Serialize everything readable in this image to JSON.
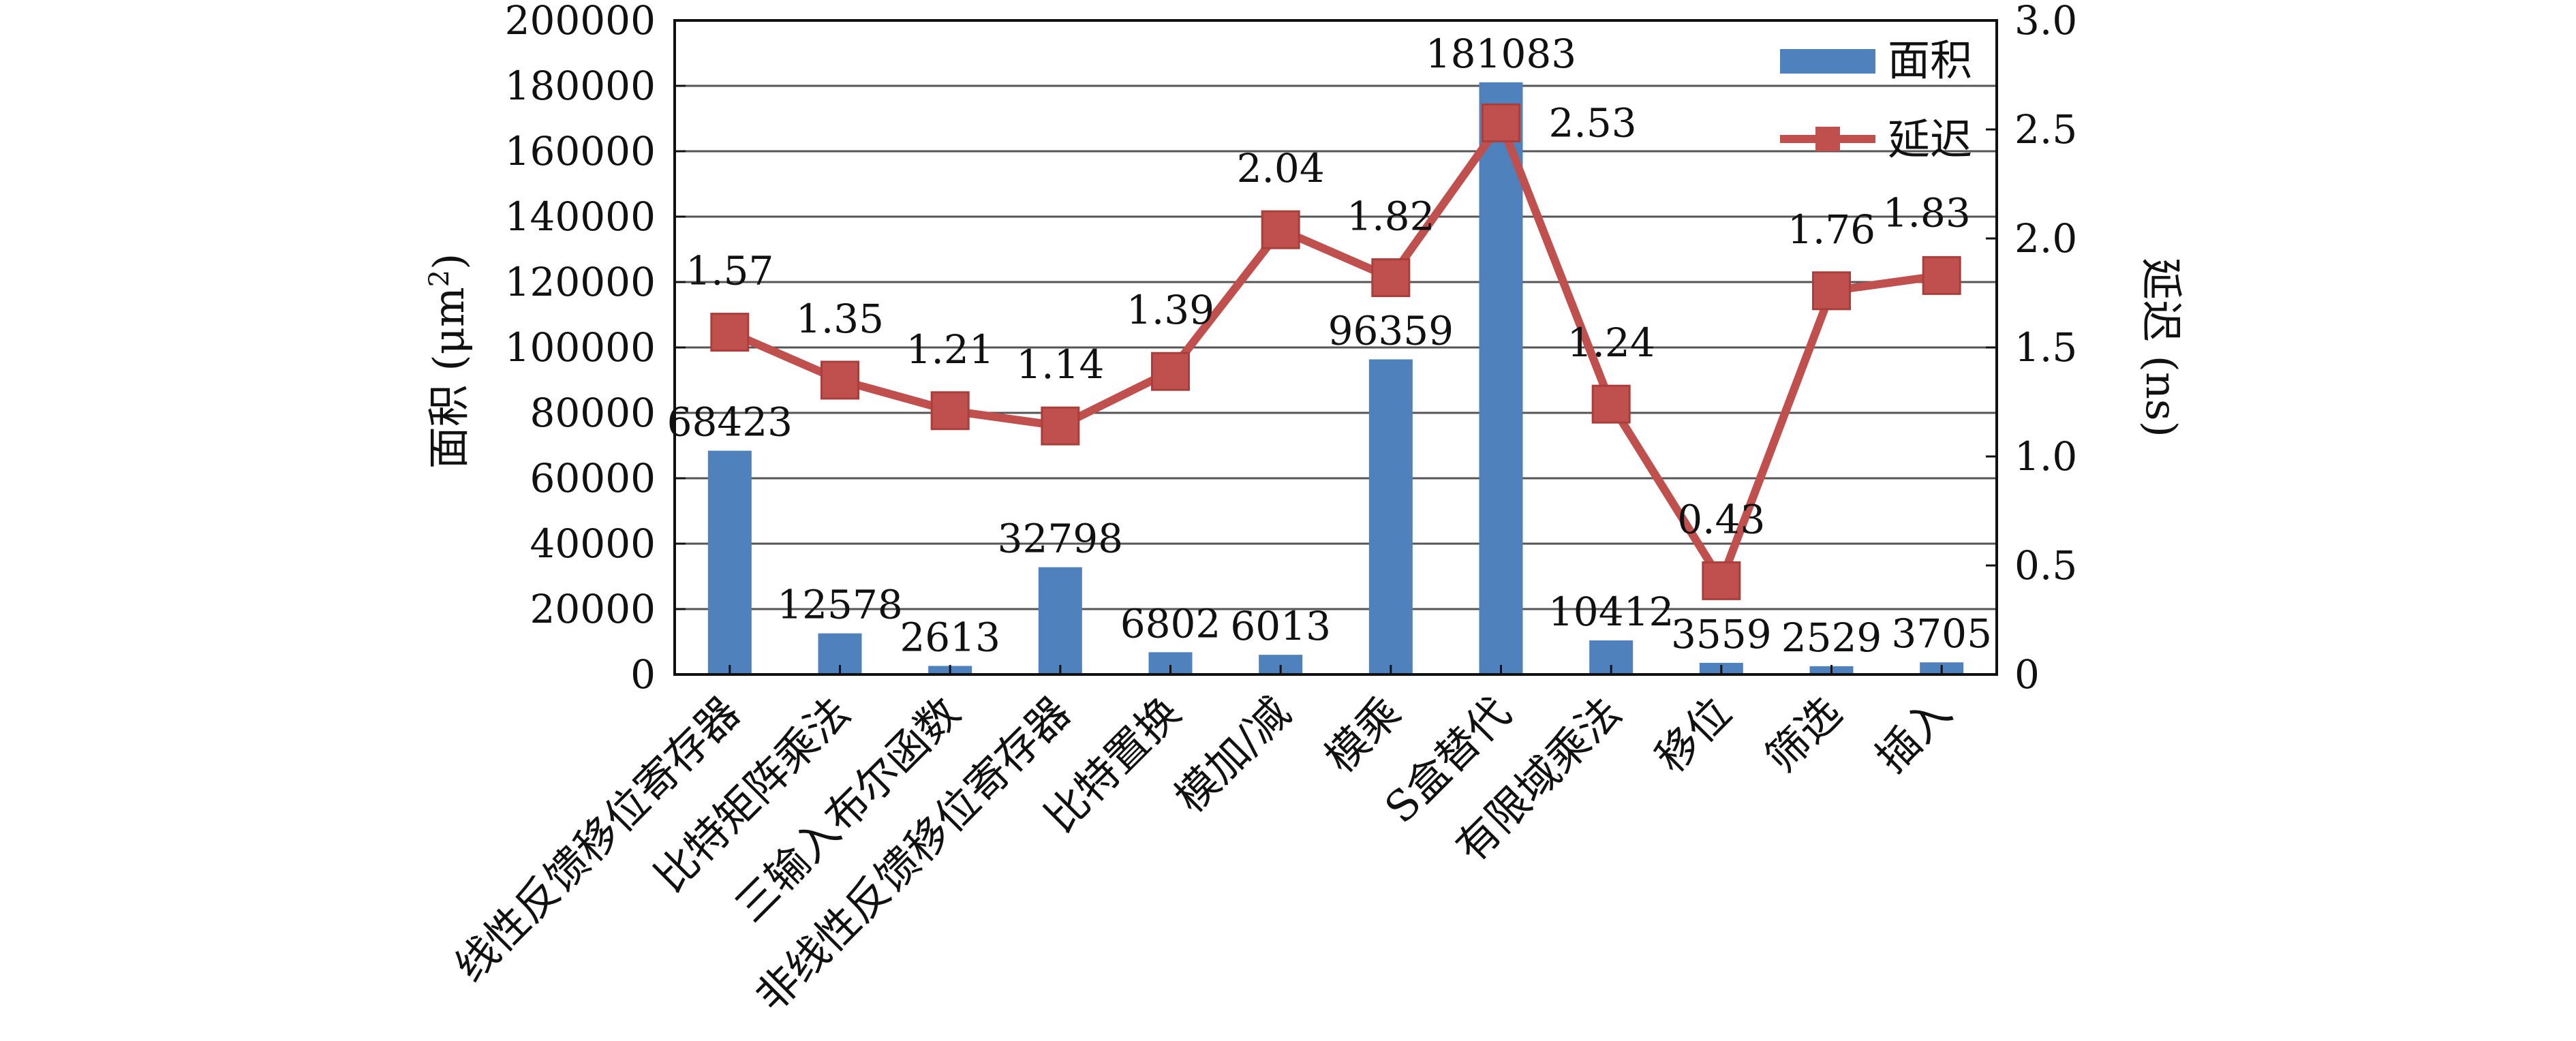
{
  "chart_data": {
    "type": "bar",
    "title": "",
    "categories": [
      "线性反馈移位寄存器",
      "比特矩阵乘法",
      "三输入布尔函数",
      "非线性反馈移位寄存器",
      "比特置换",
      "模加/减",
      "模乘",
      "S盒替代",
      "有限域乘法",
      "移位",
      "筛选",
      "插入"
    ],
    "series": [
      {
        "name": "面积",
        "type": "bar",
        "axis": "left",
        "color": "#4f81bd",
        "values": [
          68423,
          12578,
          2613,
          32798,
          6802,
          6013,
          96359,
          181083,
          10412,
          3559,
          2529,
          3705
        ],
        "labels": [
          "68423",
          "12578",
          "2613",
          "32798",
          "6802",
          "6013",
          "96359",
          "181083",
          "10412",
          "3559",
          "2529",
          "3705"
        ]
      },
      {
        "name": "延迟",
        "type": "line",
        "axis": "right",
        "color": "#c0504d",
        "marker": "square",
        "values": [
          1.57,
          1.35,
          1.21,
          1.14,
          1.39,
          2.04,
          1.82,
          2.53,
          1.24,
          0.43,
          1.76,
          1.83
        ],
        "labels": [
          "1.57",
          "1.35",
          "1.21",
          "1.14",
          "1.39",
          "2.04",
          "1.82",
          "2.53",
          "1.24",
          "0.43",
          "1.76",
          "1.83"
        ]
      }
    ],
    "y_left": {
      "label_main": "面积 (μm",
      "label_sup": "2",
      "label_close": ")",
      "range": [
        0,
        200000
      ],
      "ticks": [
        "0",
        "20000",
        "40000",
        "60000",
        "80000",
        "100000",
        "120000",
        "140000",
        "160000",
        "180000",
        "200000"
      ]
    },
    "y_right": {
      "label": "延迟 (ns)",
      "range": [
        0,
        3.0
      ],
      "ticks": [
        "0",
        "0.5",
        "1.0",
        "1.5",
        "2.0",
        "2.5",
        "3.0"
      ]
    },
    "grid": "horizontal",
    "legend": "top-right"
  }
}
